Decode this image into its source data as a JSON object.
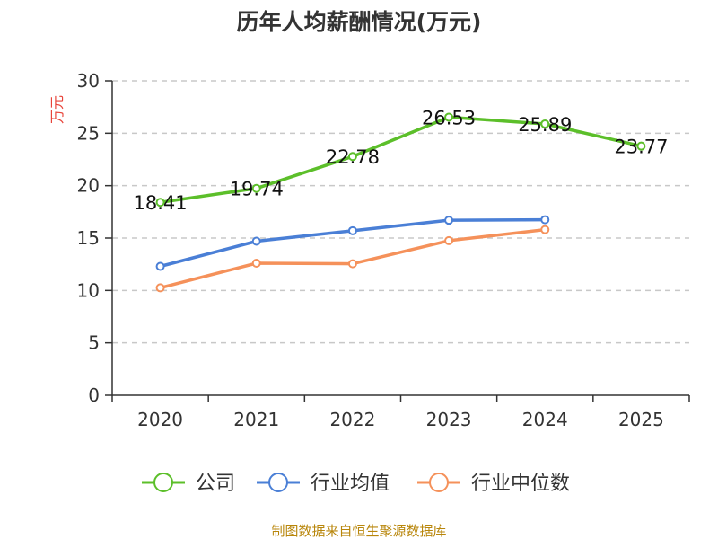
{
  "chart_data": {
    "type": "line",
    "title": "历年人均薪酬情况(万元)",
    "ylabel": "万元",
    "xlabel": "",
    "ylim": [
      0,
      30
    ],
    "yticks": [
      0,
      5,
      10,
      15,
      20,
      25,
      30
    ],
    "categories": [
      "2020",
      "2021",
      "2022",
      "2023",
      "2024",
      "2025"
    ],
    "grid": true,
    "legend_position": "bottom",
    "series": [
      {
        "name": "公司",
        "color": "#5cbf2a",
        "values": [
          18.41,
          19.74,
          22.78,
          26.53,
          25.89,
          23.77
        ],
        "labels": [
          "18.41",
          "19.74",
          "22.78",
          "26.53",
          "25.89",
          "23.77"
        ]
      },
      {
        "name": "行业均值",
        "color": "#4a7fd6",
        "values": [
          12.3,
          14.7,
          15.7,
          16.7,
          16.75,
          null
        ]
      },
      {
        "name": "行业中位数",
        "color": "#f5915a",
        "values": [
          10.25,
          12.6,
          12.55,
          14.75,
          15.8,
          null
        ]
      }
    ],
    "source": "制图数据来自恒生聚源数据库"
  }
}
